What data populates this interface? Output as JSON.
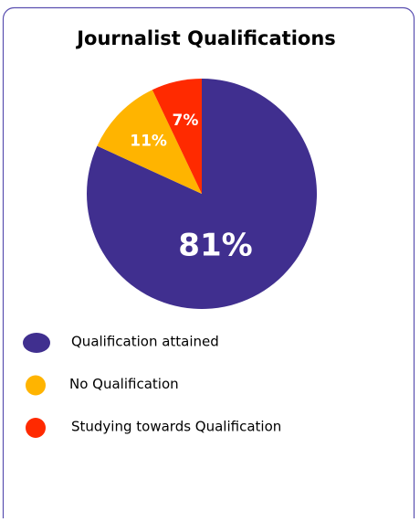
{
  "chart_data": {
    "type": "pie",
    "title": "Journalist Qualifications",
    "categories": [
      "Qualification attained",
      "No Qualification",
      "Studying towards Qualification"
    ],
    "values": [
      81,
      11,
      7
    ],
    "value_labels": [
      "81%",
      "11%",
      "7%"
    ],
    "colors": [
      "#402f8f",
      "#ffb400",
      "#ff2a00"
    ]
  }
}
